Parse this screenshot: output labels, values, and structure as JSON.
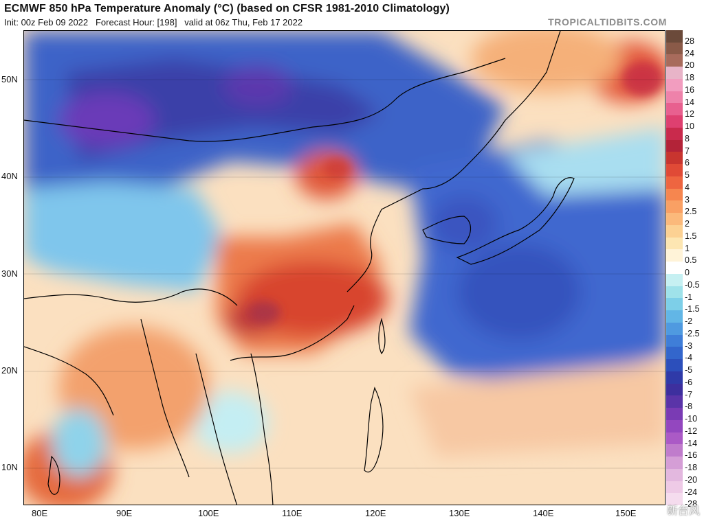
{
  "header": {
    "title": "ECMWF 850 hPa Temperature Anomaly (°C) (based on CFSR 1981-2010 Climatology)",
    "subtitle": "Init: 00z Feb 09 2022   Forecast Hour: [198]   valid at 06z Thu, Feb 17 2022",
    "credit": "TROPICALTIDBITS.COM"
  },
  "axes": {
    "lat_labels": [
      "50N",
      "40N",
      "30N",
      "20N",
      "10N"
    ],
    "lon_labels": [
      "80E",
      "90E",
      "100E",
      "110E",
      "120E",
      "130E",
      "140E",
      "150E"
    ]
  },
  "colorbar": {
    "labels": [
      "28",
      "24",
      "20",
      "18",
      "16",
      "14",
      "12",
      "10",
      "8",
      "7",
      "6",
      "5",
      "4",
      "3",
      "2.5",
      "2",
      "1.5",
      "1",
      "0.5",
      "0",
      "-0.5",
      "-1",
      "-1.5",
      "-2",
      "-2.5",
      "-3",
      "-4",
      "-5",
      "-6",
      "-7",
      "-8",
      "-10",
      "-12",
      "-14",
      "-16",
      "-18",
      "-20",
      "-24",
      "-28"
    ],
    "colors": [
      "#6b4a3a",
      "#8a5a48",
      "#a86b5c",
      "#e8b4c8",
      "#f29dbf",
      "#ee82aa",
      "#e8608f",
      "#de4070",
      "#c92a4c",
      "#b32338",
      "#c8352f",
      "#e04a36",
      "#ee6540",
      "#f6864f",
      "#f9a064",
      "#fbb97b",
      "#fcd193",
      "#fde6b2",
      "#fff3d8",
      "#ffffff",
      "#c6f0f2",
      "#9fe2ea",
      "#7dcfe8",
      "#62b6e6",
      "#4f9ae0",
      "#3f7ed8",
      "#3366cc",
      "#2c4fbb",
      "#2f3aa8",
      "#3d2f9e",
      "#5a34a8",
      "#7a3bb4",
      "#9347bf",
      "#ab5ac6",
      "#c07ccc",
      "#d59ed6",
      "#e3b8df",
      "#eecae6",
      "#f5dcee"
    ]
  },
  "map_colors": {
    "ocean_blue": "#3f6fd0",
    "cold_purple": "#5a3ab0",
    "warm_red": "#d8452f",
    "warm_orange": "#f6a36b",
    "pale": "#fde6c4"
  },
  "watermark": "新台风"
}
